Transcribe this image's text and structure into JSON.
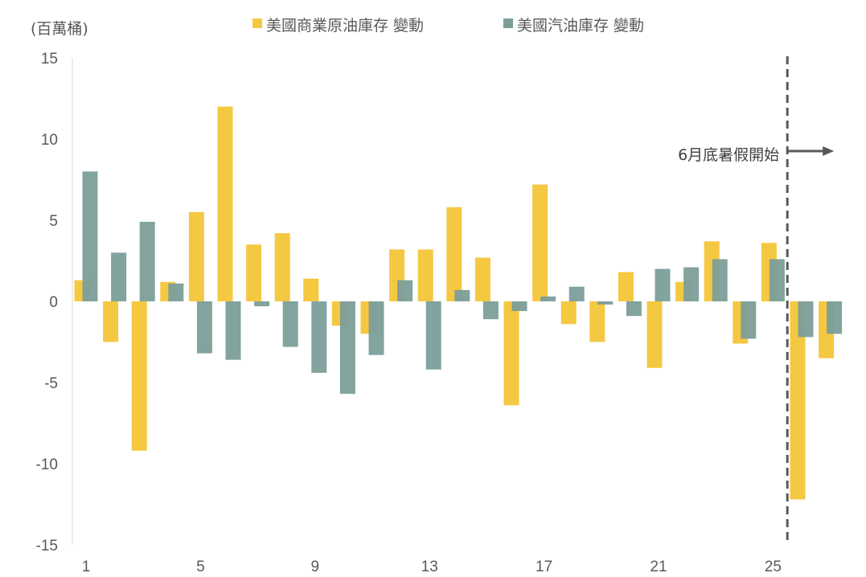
{
  "chart_data": {
    "type": "bar",
    "ylabel": "(百萬桶)",
    "ylim": [
      -15,
      15
    ],
    "yticks": [
      15,
      10,
      5,
      0,
      -5,
      -10,
      -15
    ],
    "categories": [
      "1",
      "2",
      "3",
      "4",
      "5",
      "6",
      "7",
      "8",
      "9",
      "10",
      "11",
      "12",
      "13",
      "14",
      "15",
      "16",
      "17",
      "18",
      "19",
      "20",
      "21",
      "22",
      "23",
      "24",
      "25",
      "26",
      "27"
    ],
    "xtick_labels": [
      "1",
      "5",
      "9",
      "13",
      "17",
      "21",
      "25"
    ],
    "xtick_at": [
      1,
      5,
      9,
      13,
      17,
      21,
      25
    ],
    "grid": false,
    "legend_position": "top-center",
    "series": [
      {
        "name": "美國商業原油庫存 變動",
        "color": "#F5C842",
        "values": [
          1.3,
          -2.5,
          -9.2,
          1.2,
          5.5,
          12.0,
          3.5,
          4.2,
          1.4,
          -1.5,
          -2.0,
          3.2,
          3.2,
          5.8,
          2.7,
          -6.4,
          7.2,
          -1.4,
          -2.5,
          1.8,
          -4.1,
          1.2,
          3.7,
          -2.6,
          3.6,
          -12.2,
          -3.5
        ]
      },
      {
        "name": "美國汽油庫存 變動",
        "color": "#7B9E99",
        "values": [
          8.0,
          3.0,
          4.9,
          1.1,
          -3.2,
          -3.6,
          -0.3,
          -2.8,
          -4.4,
          -5.7,
          -3.3,
          1.3,
          -4.2,
          0.7,
          -1.1,
          -0.6,
          0.3,
          0.9,
          -0.2,
          -0.9,
          2.0,
          2.1,
          2.6,
          -2.3,
          2.6,
          -2.2,
          -2.0
        ]
      }
    ],
    "annotation": {
      "text": "6月底暑假開始",
      "after_category": 25
    }
  }
}
